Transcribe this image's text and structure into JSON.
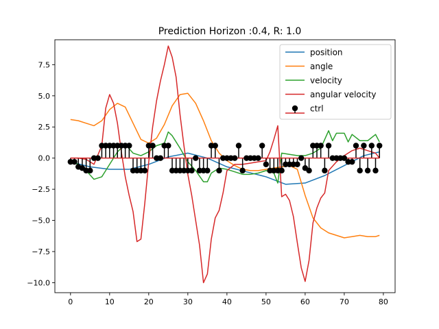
{
  "chart_data": {
    "type": "line",
    "title": "Prediction Horizon :0.4, R: 1.0",
    "xlabel": "",
    "ylabel": "",
    "xlim": [
      -4,
      83
    ],
    "ylim": [
      -10.8,
      9.5
    ],
    "xticks": [
      0,
      10,
      20,
      30,
      40,
      50,
      60,
      70,
      80
    ],
    "yticks": [
      -10.0,
      -7.5,
      -5.0,
      -2.5,
      0.0,
      2.5,
      5.0,
      7.5
    ],
    "xtick_labels": [
      "0",
      "10",
      "20",
      "30",
      "40",
      "50",
      "60",
      "70",
      "80"
    ],
    "ytick_labels": [
      "−10.0",
      "−7.5",
      "−5.0",
      "−2.5",
      "0.0",
      "2.5",
      "5.0",
      "7.5"
    ],
    "grid": false,
    "legend": {
      "placement": "top-right",
      "entries": [
        "position",
        "angle",
        "velocity",
        "angular velocity",
        "ctrl"
      ]
    },
    "series": [
      {
        "name": "position",
        "color": "#1f77b4",
        "x": [
          0,
          5,
          10,
          15,
          20,
          25,
          30,
          35,
          40,
          45,
          50,
          55,
          60,
          65,
          70,
          75,
          79
        ],
        "values": [
          -0.3,
          -0.7,
          -0.9,
          -0.9,
          -0.5,
          0.1,
          0.4,
          0.0,
          -0.7,
          -1.1,
          -1.5,
          -2.1,
          -2.0,
          -1.4,
          -0.6,
          0.2,
          0.5
        ]
      },
      {
        "name": "angle",
        "color": "#ff7f0e",
        "x": [
          0,
          2,
          4,
          6,
          8,
          10,
          12,
          14,
          16,
          18,
          20,
          22,
          24,
          26,
          28,
          30,
          32,
          34,
          36,
          38,
          40,
          42,
          44,
          46,
          48,
          50,
          52,
          54,
          56,
          58,
          60,
          62,
          64,
          66,
          68,
          70,
          72,
          74,
          76,
          78,
          79
        ],
        "values": [
          3.1,
          3.0,
          2.8,
          2.6,
          3.0,
          3.9,
          4.4,
          4.1,
          2.8,
          1.5,
          1.2,
          1.6,
          2.7,
          4.2,
          5.1,
          5.2,
          4.4,
          3.0,
          1.4,
          0.4,
          -0.2,
          -0.6,
          -0.9,
          -1.0,
          -1.0,
          -0.9,
          -0.8,
          -0.7,
          -0.6,
          -0.9,
          -3.0,
          -4.8,
          -5.6,
          -6.0,
          -6.2,
          -6.4,
          -6.3,
          -6.2,
          -6.3,
          -6.3,
          -6.2
        ]
      },
      {
        "name": "velocity",
        "color": "#2ca02c",
        "x": [
          0,
          2,
          4,
          6,
          8,
          10,
          12,
          14,
          16,
          18,
          20,
          22,
          24,
          25,
          26,
          28,
          30,
          32,
          34,
          35,
          36,
          38,
          40,
          42,
          44,
          46,
          48,
          50,
          52,
          53,
          54,
          56,
          58,
          60,
          62,
          64,
          66,
          67,
          68,
          70,
          71,
          72,
          74,
          76,
          78,
          79
        ],
        "values": [
          -0.3,
          -0.5,
          -1.0,
          -1.7,
          -1.5,
          -0.5,
          0.5,
          1.1,
          0.4,
          0.2,
          0.5,
          1.0,
          1.2,
          2.1,
          1.8,
          0.8,
          -0.3,
          -1.0,
          -1.9,
          -1.9,
          -1.2,
          -0.8,
          -0.9,
          -1.1,
          -1.3,
          -1.3,
          -1.2,
          -1.0,
          -1.2,
          -2.0,
          0.4,
          0.3,
          0.2,
          0.2,
          0.4,
          0.8,
          2.2,
          1.4,
          2.0,
          2.0,
          1.3,
          1.9,
          1.4,
          1.4,
          1.9,
          1.3
        ]
      },
      {
        "name": "angular velocity",
        "color": "#d62728",
        "x": [
          0,
          2,
          4,
          6,
          8,
          9,
          10,
          11,
          12,
          13,
          14,
          15,
          16,
          17,
          18,
          19,
          20,
          21,
          22,
          23,
          24,
          25,
          26,
          27,
          28,
          29,
          30,
          31,
          32,
          33,
          34,
          35,
          36,
          37,
          38,
          39,
          40,
          42,
          44,
          46,
          48,
          50,
          51,
          52,
          53,
          54,
          55,
          56,
          57,
          58,
          59,
          60,
          61,
          62,
          63,
          64,
          65,
          66,
          68,
          70,
          72,
          74,
          76,
          78,
          79
        ],
        "values": [
          0.0,
          0.0,
          -0.1,
          -0.5,
          1.0,
          4.0,
          5.1,
          4.4,
          2.8,
          0.5,
          -1.5,
          -3.0,
          -4.3,
          -6.7,
          -6.5,
          -3.6,
          -0.3,
          2.5,
          4.6,
          6.2,
          7.5,
          9.0,
          8.1,
          6.5,
          3.5,
          1.0,
          -1.3,
          -3.0,
          -5.0,
          -7.0,
          -10.0,
          -9.3,
          -6.5,
          -4.8,
          -4.2,
          -2.8,
          -1.0,
          -0.5,
          -0.5,
          -0.4,
          -0.3,
          -0.2,
          0.5,
          1.5,
          2.6,
          -3.1,
          -2.9,
          -3.4,
          -4.7,
          -6.8,
          -8.8,
          -9.9,
          -8.2,
          -5.2,
          -4.0,
          -3.2,
          -2.8,
          -1.0,
          -0.3,
          0.2,
          0.6,
          0.8,
          0.6,
          0.4,
          0.0
        ]
      }
    ],
    "ctrl": {
      "name": "ctrl",
      "color": "#000000",
      "baseline_color": "#d62728",
      "x": [
        0,
        1,
        2,
        3,
        4,
        5,
        6,
        7,
        8,
        9,
        10,
        11,
        12,
        13,
        14,
        15,
        16,
        17,
        18,
        19,
        20,
        21,
        22,
        23,
        24,
        25,
        26,
        27,
        28,
        29,
        30,
        31,
        32,
        33,
        34,
        35,
        36,
        37,
        38,
        39,
        40,
        41,
        42,
        43,
        44,
        45,
        46,
        47,
        48,
        49,
        50,
        51,
        52,
        53,
        54,
        55,
        56,
        57,
        58,
        59,
        60,
        61,
        62,
        63,
        64,
        65,
        66,
        67,
        68,
        69,
        70,
        71,
        72,
        73,
        74,
        75,
        76,
        77,
        78,
        79
      ],
      "values": [
        -0.3,
        -0.3,
        -0.7,
        -0.8,
        -1.0,
        -1.0,
        0.0,
        0.0,
        1.0,
        1.0,
        1.0,
        1.0,
        1.0,
        1.0,
        1.0,
        1.0,
        -1.0,
        -1.0,
        -1.0,
        -1.0,
        1.0,
        1.0,
        0.0,
        0.0,
        1.0,
        1.0,
        -1.0,
        -1.0,
        -1.0,
        -1.0,
        -1.0,
        -1.0,
        0.0,
        -1.0,
        -1.0,
        -1.0,
        1.0,
        1.0,
        -1.0,
        0.0,
        0.0,
        0.0,
        0.0,
        1.0,
        -1.0,
        0.0,
        0.0,
        0.0,
        0.0,
        1.0,
        -0.5,
        -1.0,
        -1.0,
        -1.0,
        -1.0,
        -0.5,
        -0.5,
        -0.5,
        -0.5,
        0.0,
        -0.8,
        -1.0,
        1.0,
        1.0,
        1.0,
        -1.0,
        1.0,
        0.0,
        0.0,
        0.0,
        0.0,
        -0.3,
        -0.3,
        1.0,
        -1.0,
        1.0,
        -1.0,
        1.0,
        -1.0,
        1.0
      ]
    }
  }
}
